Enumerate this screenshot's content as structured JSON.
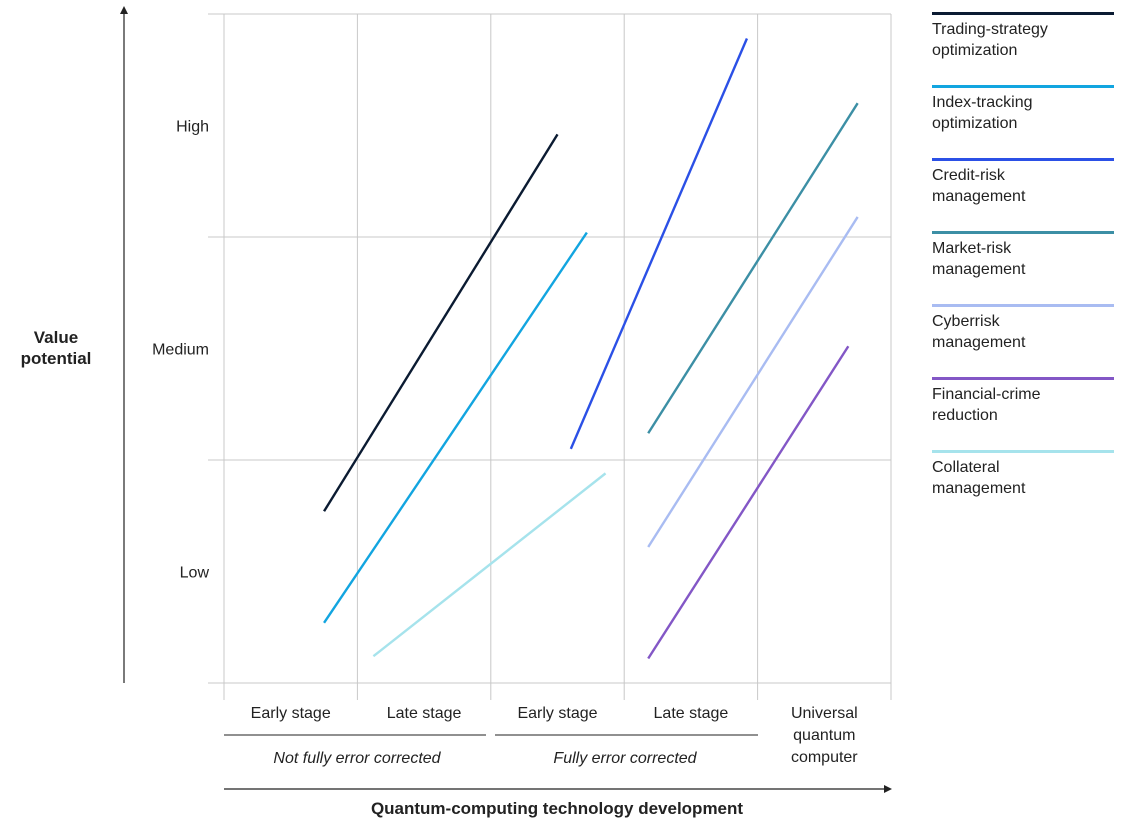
{
  "chart_data": {
    "type": "line",
    "title": "",
    "xlabel": "Quantum-computing technology development",
    "ylabel": "Value\npotential",
    "categories": [
      "Early stage",
      "Late stage",
      "Early stage",
      "Late stage",
      "Universal\nquantum\ncomputer"
    ],
    "category_groups": [
      {
        "label": "Not fully error corrected",
        "categories": [
          0,
          1
        ]
      },
      {
        "label": "Fully error corrected",
        "categories": [
          2,
          3
        ]
      }
    ],
    "y_levels": [
      "Low",
      "Medium",
      "High"
    ],
    "xlim": [
      0,
      5
    ],
    "ylim": [
      0,
      3
    ],
    "grid": true,
    "legend_position": "right",
    "series": [
      {
        "name": "Trading-strategy\noptimization",
        "color": "#0b1b32",
        "x": [
          0.75,
          2.5
        ],
        "y": [
          0.77,
          2.46
        ]
      },
      {
        "name": "Index-tracking\noptimization",
        "color": "#12a5e0",
        "x": [
          0.75,
          2.72
        ],
        "y": [
          0.27,
          2.02
        ]
      },
      {
        "name": "Credit-risk\nmanagement",
        "color": "#2b50e6",
        "x": [
          2.6,
          3.92
        ],
        "y": [
          1.05,
          2.89
        ]
      },
      {
        "name": "Market-risk\nmanagement",
        "color": "#3c8fa5",
        "x": [
          3.18,
          4.75
        ],
        "y": [
          1.12,
          2.6
        ]
      },
      {
        "name": "Cyberrisk\nmanagement",
        "color": "#a9bcf2",
        "x": [
          3.18,
          4.75
        ],
        "y": [
          0.61,
          2.09
        ]
      },
      {
        "name": "Financial-crime\nreduction",
        "color": "#8357c6",
        "x": [
          3.18,
          4.68
        ],
        "y": [
          0.11,
          1.51
        ]
      },
      {
        "name": "Collateral\nmanagement",
        "color": "#a6e3ec",
        "x": [
          1.12,
          2.86
        ],
        "y": [
          0.12,
          0.94
        ]
      }
    ]
  }
}
